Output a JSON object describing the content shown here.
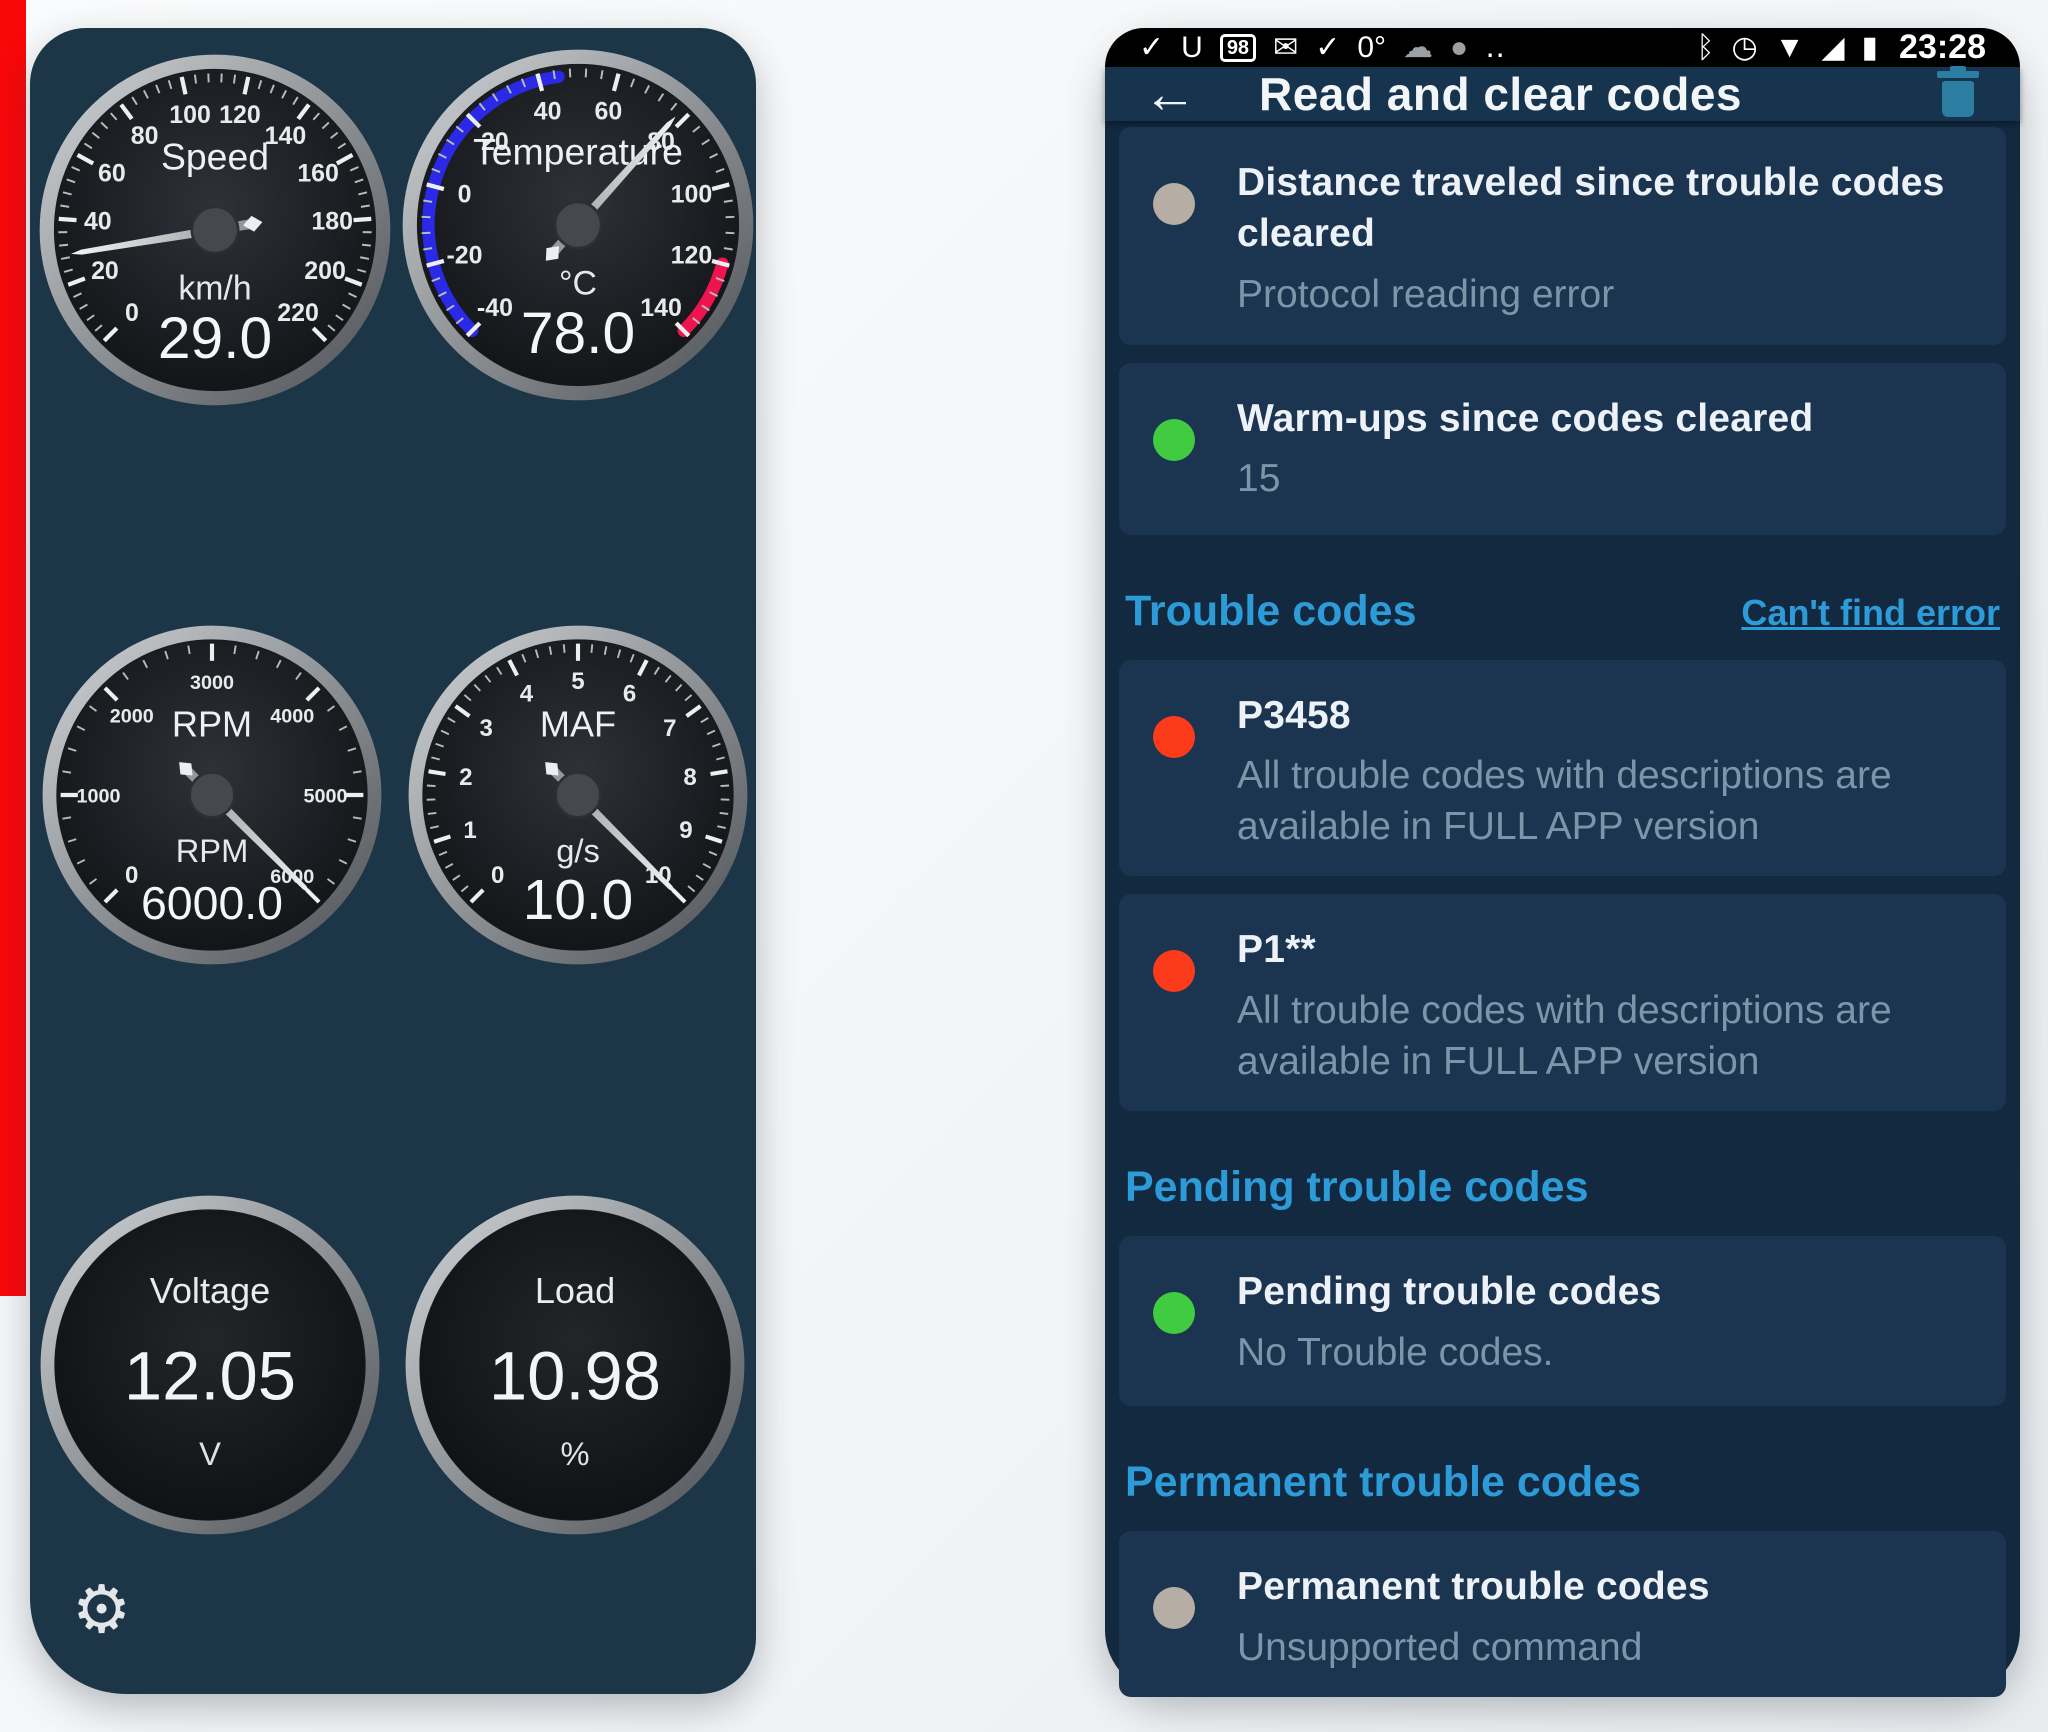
{
  "page": {
    "left_accent_color": "#f90709"
  },
  "left_panel": {
    "bg": "#1c3547",
    "gear_icon_glyph": "⚙",
    "gauges": [
      {
        "id": "speed",
        "type": "dial",
        "title": "Speed",
        "unit": "km/h",
        "value": "29.0",
        "min": 0,
        "max": 220,
        "needle_value": 29,
        "labels": [
          "0",
          "20",
          "40",
          "60",
          "80",
          "100",
          "120",
          "140",
          "160",
          "180",
          "200",
          "220"
        ]
      },
      {
        "id": "temperature",
        "type": "dial",
        "title": "Temperature",
        "unit": "°C",
        "value": "78.0",
        "min": -40,
        "max": 140,
        "needle_value": 78,
        "labels": [
          "-40",
          "-20",
          "0",
          "20",
          "40",
          "60",
          "80",
          "100",
          "120",
          "140"
        ],
        "arcs": [
          {
            "from": -40,
            "to": 45,
            "color": "#2a2ae6"
          },
          {
            "from": 120,
            "to": 140,
            "color": "#ef1450"
          }
        ]
      },
      {
        "id": "rpm",
        "type": "dial",
        "title": "RPM",
        "unit": "RPM",
        "value": "6000.0",
        "min": 0,
        "max": 6000,
        "needle_value": 6000,
        "labels": [
          "0",
          "1000",
          "2000",
          "3000",
          "4000",
          "5000",
          "6000"
        ]
      },
      {
        "id": "maf",
        "type": "dial",
        "title": "MAF",
        "unit": "g/s",
        "value": "10.0",
        "min": 0,
        "max": 10,
        "needle_value": 10,
        "labels": [
          "0",
          "1",
          "2",
          "3",
          "4",
          "5",
          "6",
          "7",
          "8",
          "9",
          "10"
        ]
      },
      {
        "id": "voltage",
        "type": "display",
        "title": "Voltage",
        "unit": "V",
        "value": "12.05"
      },
      {
        "id": "load",
        "type": "display",
        "title": "Load",
        "unit": "%",
        "value": "10.98"
      }
    ]
  },
  "right_panel": {
    "status_bar": {
      "time": "23:28",
      "notification_icons": [
        {
          "name": "obd-plug-icon",
          "glyph": "✓"
        },
        {
          "name": "shield-update-icon",
          "glyph": "U"
        },
        {
          "name": "code-98-icon",
          "glyph": "98",
          "boxed": true
        },
        {
          "name": "mail-icon",
          "glyph": "✉"
        },
        {
          "name": "obd-plug-icon-2",
          "glyph": "✓"
        },
        {
          "name": "weather-temp-text",
          "glyph": "0°"
        },
        {
          "name": "cloud-icon",
          "glyph": "☁",
          "muted": true
        },
        {
          "name": "moon-icon",
          "glyph": "●",
          "muted": true
        },
        {
          "name": "overflow-dots-icon",
          "glyph": "‥"
        }
      ],
      "status_icons": [
        {
          "name": "bluetooth-icon",
          "glyph": "ᛒ"
        },
        {
          "name": "alarm-icon",
          "glyph": "◷"
        },
        {
          "name": "wifi-icon",
          "glyph": "▼"
        },
        {
          "name": "signal-icon",
          "glyph": "◢"
        },
        {
          "name": "battery-icon",
          "glyph": "▮"
        }
      ]
    },
    "app_bar": {
      "back_glyph": "←",
      "title": "Read and clear codes",
      "trash_color": "#2b7da2"
    },
    "dot_colors": {
      "gray": "#b6aea5",
      "green": "#41cb40",
      "red": "#fc3b1b"
    },
    "sections": [
      {
        "cards": [
          {
            "dot": "gray",
            "title": "Distance traveled since trouble codes cleared",
            "subtitle": "Protocol reading error"
          },
          {
            "dot": "green",
            "title": "Warm-ups since codes cleared",
            "subtitle": "15"
          }
        ]
      },
      {
        "header": "Trouble codes",
        "link": "Can't find error",
        "cards": [
          {
            "dot": "red",
            "title": "P3458",
            "subtitle": "All trouble codes with descriptions are available in FULL APP version"
          },
          {
            "dot": "red",
            "title": "P1**",
            "subtitle": "All trouble codes with descriptions are available in FULL APP version"
          }
        ]
      },
      {
        "header": "Pending trouble codes",
        "cards": [
          {
            "dot": "green",
            "title": "Pending trouble codes",
            "subtitle": "No Trouble codes."
          }
        ]
      },
      {
        "header": "Permanent trouble codes",
        "cards": [
          {
            "dot": "gray",
            "title": "Permanent trouble codes",
            "subtitle": "Unsupported command"
          }
        ]
      }
    ]
  }
}
